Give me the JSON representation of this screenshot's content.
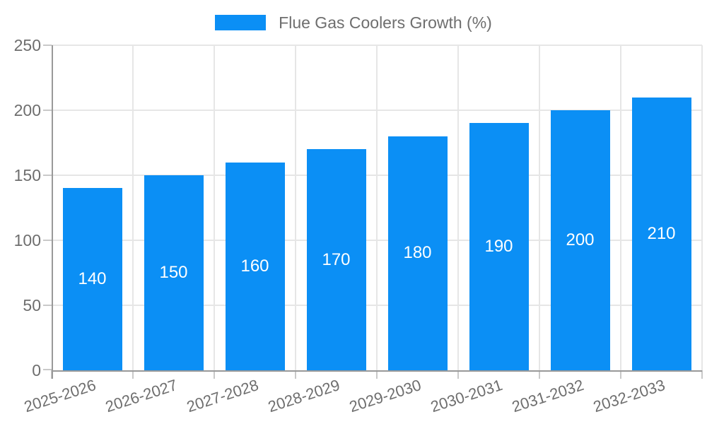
{
  "legend": {
    "label": "Flue Gas Coolers Growth (%)"
  },
  "chart_data": {
    "type": "bar",
    "title": "",
    "categories": [
      "2025-2026",
      "2026-2027",
      "2027-2028",
      "2028-2029",
      "2029-2030",
      "2030-2031",
      "2031-2032",
      "2032-2033"
    ],
    "series": [
      {
        "name": "Flue Gas Coolers Growth (%)",
        "values": [
          140,
          150,
          160,
          170,
          180,
          190,
          200,
          210
        ]
      }
    ],
    "xlabel": "",
    "ylabel": "",
    "ylim": [
      0,
      250
    ],
    "yticks": [
      0,
      50,
      100,
      150,
      200,
      250
    ],
    "grid": true,
    "legend_position": "top-center",
    "value_labels_position": "inside-center",
    "x_label_rotation_deg": -18
  },
  "colors": {
    "bar": "#0b8ff5",
    "axis_line": "#999999",
    "grid_line": "#e6e6e6",
    "tick": "#c9c9c9",
    "label_text": "#6e6e6e",
    "value_label_text": "#ffffff",
    "background": "#ffffff"
  }
}
